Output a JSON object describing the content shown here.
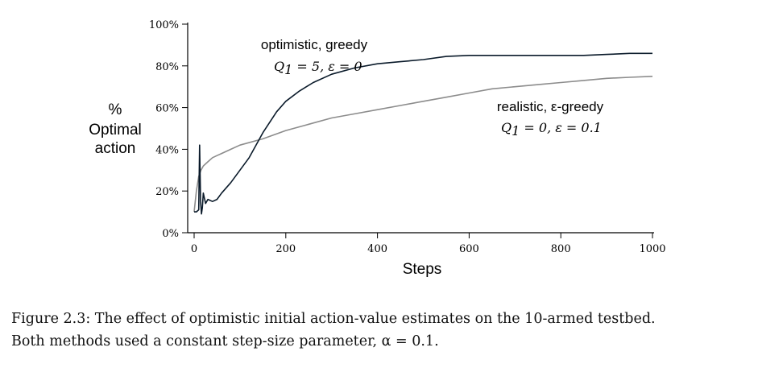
{
  "chart_data": {
    "type": "line",
    "xlabel": "Steps",
    "ylabel": [
      "%",
      "Optimal",
      "action"
    ],
    "xlim": [
      0,
      1000
    ],
    "ylim": [
      0,
      100
    ],
    "x_ticks": [
      "0",
      "200",
      "400",
      "600",
      "800",
      "1000"
    ],
    "y_ticks": [
      "0%",
      "20%",
      "40%",
      "60%",
      "80%",
      "100%"
    ],
    "grid": false,
    "legend": "none",
    "series": [
      {
        "name": "optimistic, greedy",
        "params": "Q1 = 5, ε = 0",
        "color": "#0a1a2a",
        "x": [
          0,
          5,
          10,
          12,
          14,
          16,
          18,
          20,
          22,
          25,
          30,
          40,
          50,
          60,
          80,
          100,
          120,
          150,
          180,
          200,
          230,
          260,
          300,
          350,
          400,
          450,
          500,
          550,
          600,
          650,
          700,
          750,
          800,
          850,
          900,
          950,
          1000
        ],
        "values": [
          10,
          10,
          11,
          42,
          15,
          9,
          12,
          19,
          17,
          14,
          16,
          15,
          16,
          19,
          24,
          30,
          36,
          48,
          58,
          63,
          68,
          72,
          76,
          79,
          81,
          82,
          83,
          84.5,
          85,
          85,
          85,
          85,
          85,
          85,
          85.5,
          86,
          86
        ]
      },
      {
        "name": "realistic, ε-greedy",
        "params": "Q1 = 0, ε = 0.1",
        "color": "#8c8c8c",
        "x": [
          0,
          5,
          10,
          15,
          20,
          30,
          40,
          50,
          60,
          80,
          100,
          150,
          200,
          250,
          300,
          350,
          400,
          450,
          500,
          550,
          600,
          650,
          700,
          750,
          800,
          850,
          900,
          950,
          1000
        ],
        "values": [
          10,
          20,
          27,
          30,
          32,
          34,
          36,
          37,
          38,
          40,
          42,
          45,
          49,
          52,
          55,
          57,
          59,
          61,
          63,
          65,
          67,
          69,
          70,
          71,
          72,
          73,
          74,
          74.5,
          75
        ]
      }
    ]
  },
  "annotations": {
    "greedy_label": "optimistic, greedy",
    "greedy_q": "Q",
    "greedy_sub": "1",
    "greedy_rest": " = 5,  ε = 0",
    "egreedy_label": "realistic, ε-greedy",
    "egreedy_q": "Q",
    "egreedy_sub": "1",
    "egreedy_rest": " = 0,  ε = 0.1"
  },
  "caption": {
    "line1": "Figure 2.3: The effect of optimistic initial action-value estimates on the 10-armed testbed.",
    "line2": "Both methods used a constant step-size parameter, α = 0.1."
  }
}
